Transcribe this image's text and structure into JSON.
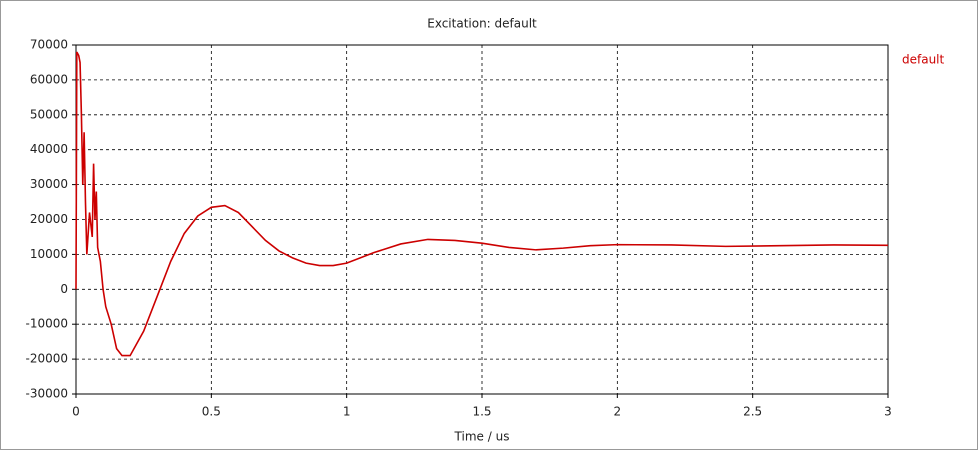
{
  "chart_data": {
    "type": "line",
    "title": "Excitation: default",
    "xlabel": "Time / us",
    "x": [
      0,
      0.003,
      0.01,
      0.015,
      0.02,
      0.025,
      0.03,
      0.035,
      0.04,
      0.05,
      0.06,
      0.065,
      0.07,
      0.075,
      0.08,
      0.09,
      0.1,
      0.11,
      0.13,
      0.15,
      0.17,
      0.2,
      0.25,
      0.3,
      0.35,
      0.4,
      0.45,
      0.5,
      0.55,
      0.6,
      0.65,
      0.7,
      0.75,
      0.8,
      0.85,
      0.9,
      0.95,
      1.0,
      1.1,
      1.2,
      1.3,
      1.4,
      1.5,
      1.6,
      1.7,
      1.8,
      1.9,
      2.0,
      2.2,
      2.4,
      2.6,
      2.8,
      3.0
    ],
    "series": [
      {
        "name": "default",
        "color": "#cc0000",
        "values": [
          0,
          68000,
          67000,
          65000,
          50000,
          30000,
          45000,
          25000,
          10000,
          22000,
          15000,
          36000,
          20000,
          28000,
          12000,
          8000,
          0,
          -5000,
          -10000,
          -17000,
          -19000,
          -19000,
          -12000,
          -2000,
          8000,
          16000,
          21000,
          23500,
          24000,
          22000,
          18000,
          14000,
          11000,
          9000,
          7500,
          6800,
          6800,
          7500,
          10500,
          13000,
          14300,
          14000,
          13200,
          12000,
          11300,
          11800,
          12500,
          12800,
          12700,
          12300,
          12500,
          12700,
          12600
        ]
      }
    ],
    "xlim": [
      0,
      3
    ],
    "xticks": [
      0,
      0.5,
      1,
      1.5,
      2,
      2.5,
      3
    ],
    "ylim": [
      -30000,
      70000
    ],
    "yticks": [
      -30000,
      -20000,
      -10000,
      0,
      10000,
      20000,
      30000,
      40000,
      50000,
      60000,
      70000
    ],
    "grid": true,
    "legend": "top-right"
  }
}
